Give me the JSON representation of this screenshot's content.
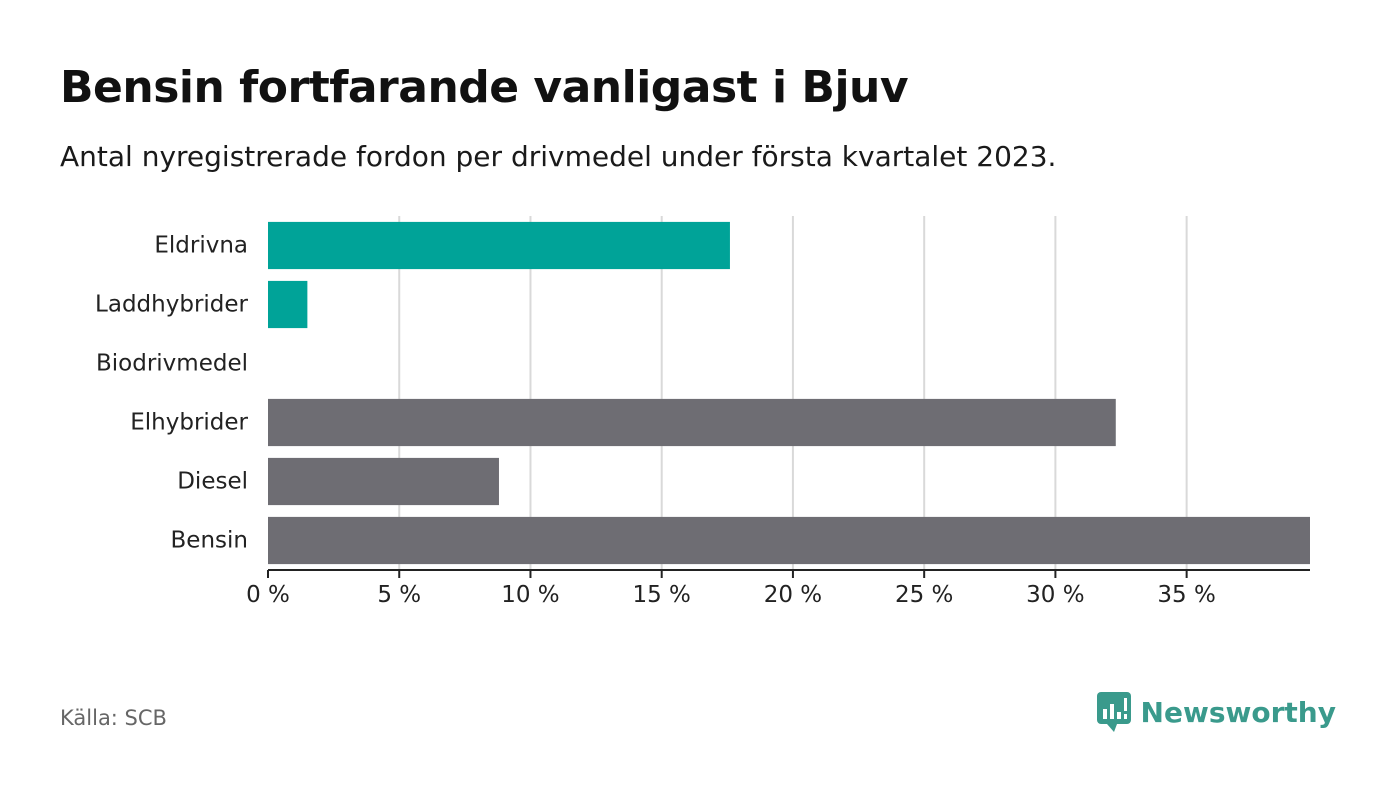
{
  "title": "Bensin fortfarande vanligast i Bjuv",
  "subtitle": "Antal nyregistrerade fordon per drivmedel under första kvartalet 2023.",
  "source": "Källa: SCB",
  "brand": "Newsworthy",
  "colors": {
    "highlight": "#00a398",
    "default": "#6e6d73",
    "grid": "#d9d9d9",
    "axis": "#222222",
    "brand": "#3a9a8c"
  },
  "chart_data": {
    "type": "bar",
    "orientation": "horizontal",
    "categories": [
      "Eldrivna",
      "Laddhybrider",
      "Biodrivmedel",
      "Elhybrider",
      "Diesel",
      "Bensin"
    ],
    "values": [
      17.6,
      1.5,
      0,
      32.3,
      8.8,
      39.7
    ],
    "highlighted": [
      true,
      true,
      false,
      false,
      false,
      false
    ],
    "xlim": [
      0,
      39.7
    ],
    "xticks": [
      0,
      5,
      10,
      15,
      20,
      25,
      30,
      35
    ],
    "xtick_labels": [
      "0 %",
      "5 %",
      "10 %",
      "15 %",
      "20 %",
      "25 %",
      "30 %",
      "35 %"
    ],
    "grid": true
  }
}
